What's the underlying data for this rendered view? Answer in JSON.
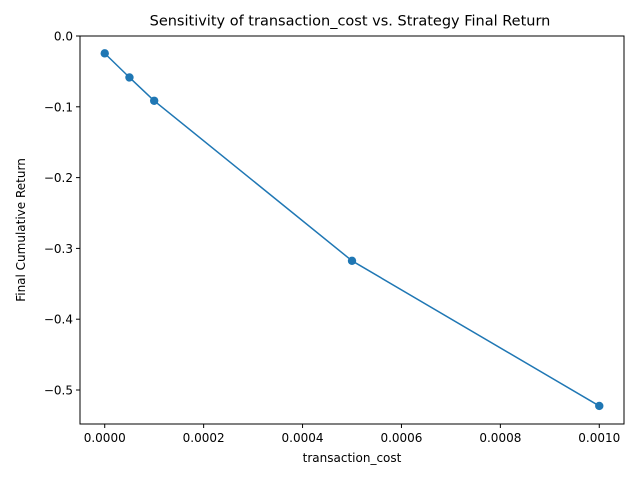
{
  "chart_data": {
    "type": "line",
    "title": "Sensitivity of transaction_cost vs. Strategy Final Return",
    "xlabel": "transaction_cost",
    "ylabel": "Final Cumulative Return",
    "xlim": [
      -5e-05,
      0.00105
    ],
    "ylim": [
      -0.548,
      0.0
    ],
    "xticks": [
      0.0,
      0.0002,
      0.0004,
      0.0006,
      0.0008,
      0.001
    ],
    "xtick_labels": [
      "0.0000",
      "0.0002",
      "0.0004",
      "0.0006",
      "0.0008",
      "0.0010"
    ],
    "yticks": [
      0.0,
      -0.1,
      -0.2,
      -0.3,
      -0.4,
      -0.5
    ],
    "ytick_labels": [
      "0.0",
      "−0.1",
      "−0.2",
      "−0.3",
      "−0.4",
      "−0.5"
    ],
    "grid": false,
    "series": [
      {
        "color": "#1f77b4",
        "marker": "circle",
        "x": [
          0.0,
          5e-05,
          0.0001,
          0.0005,
          0.001
        ],
        "y": [
          -0.0245,
          -0.0585,
          -0.0915,
          -0.3175,
          -0.5225
        ]
      }
    ]
  }
}
